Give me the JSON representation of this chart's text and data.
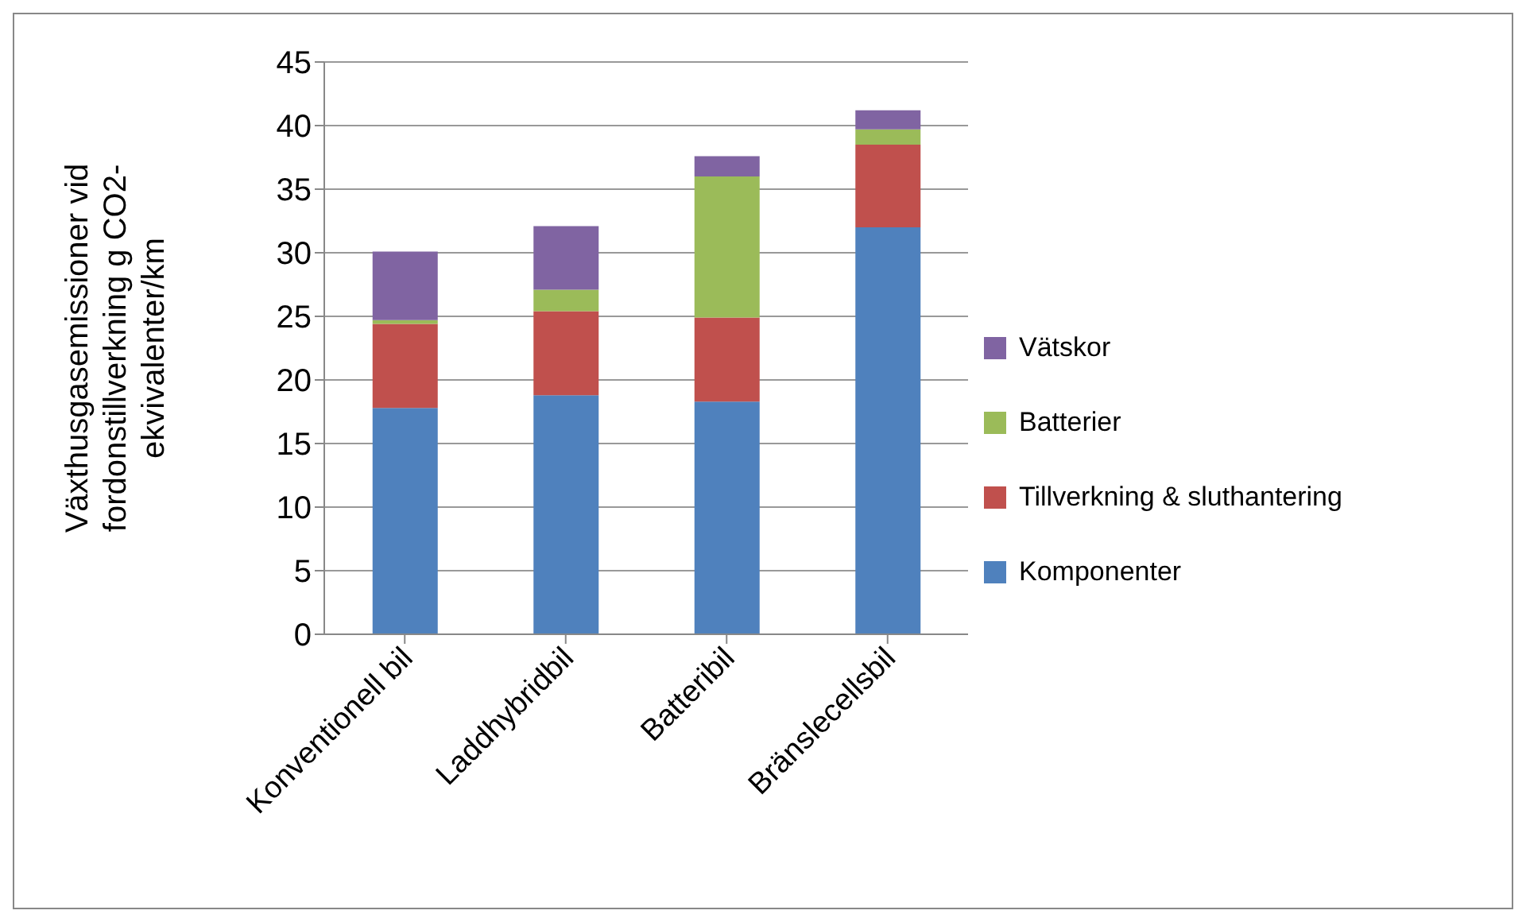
{
  "chart_data": {
    "type": "bar",
    "stacked": true,
    "ylabel": "Växthusgasemissioner vid fordonstillverkning g CO2-ekvivalenter/km",
    "categories": [
      "Konventionell bil",
      "Laddhybridbil",
      "Batteribil",
      "Bränslecellsbil"
    ],
    "series": [
      {
        "name": "Komponenter",
        "color": "#4f81bd",
        "values": [
          17.8,
          18.8,
          18.3,
          32.0
        ]
      },
      {
        "name": "Tillverkning & sluthantering",
        "color": "#c0504d",
        "values": [
          6.6,
          6.6,
          6.6,
          6.5
        ]
      },
      {
        "name": "Batterier",
        "color": "#9bbb59",
        "values": [
          0.3,
          1.7,
          11.1,
          1.2
        ]
      },
      {
        "name": "Vätskor",
        "color": "#8064a2",
        "values": [
          5.4,
          5.0,
          1.6,
          1.5
        ]
      }
    ],
    "ylim": [
      0,
      45
    ],
    "yticks": [
      0,
      5,
      10,
      15,
      20,
      25,
      30,
      35,
      40,
      45
    ],
    "grid": "y",
    "legend": "right"
  }
}
